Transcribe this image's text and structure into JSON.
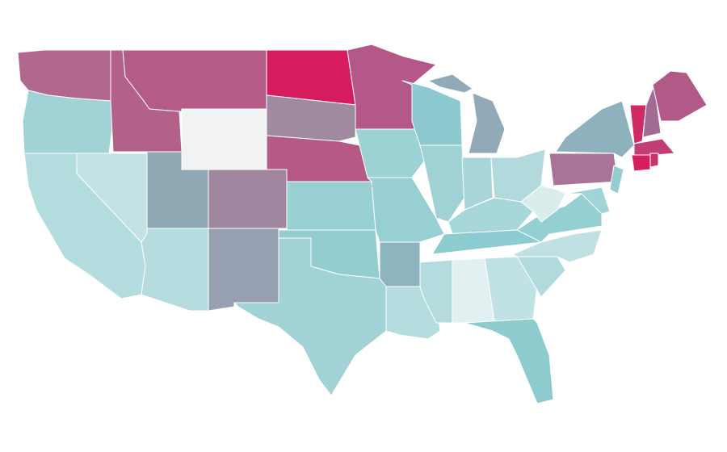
{
  "map": {
    "regions": [
      {
        "color": "#b0688f"
      },
      {
        "color": "#a0d2d6"
      },
      {
        "color": "#b3dcdf"
      },
      {
        "color": "#c2e2e4"
      },
      {
        "color": "#b4618a"
      },
      {
        "color": "#b45c87"
      },
      {
        "color": "#f1f2f4"
      },
      {
        "color": "#8fa9b4"
      },
      {
        "color": "#a0869f"
      },
      {
        "color": "#b4dbde"
      },
      {
        "color": "#96a0b2"
      },
      {
        "color": "#d61c5e"
      },
      {
        "color": "#a08aa0"
      },
      {
        "color": "#b65a85"
      },
      {
        "color": "#98cfd2"
      },
      {
        "color": "#94cdd0"
      },
      {
        "color": "#a1d2d6"
      },
      {
        "color": "#b4588a"
      },
      {
        "color": "#9dd2d4"
      },
      {
        "color": "#98cfd2"
      },
      {
        "color": "#8db4bf"
      },
      {
        "color": "#b5dde0"
      },
      {
        "color": "#8ccacf"
      },
      {
        "color": "#9fd1d5"
      },
      {
        "color": "#91aab8"
      },
      {
        "color": "#a9d6d9"
      },
      {
        "color": "#b2dadd"
      },
      {
        "color": "#a8d7da"
      },
      {
        "color": "#8ccbcf"
      },
      {
        "color": "#b4dcdf"
      },
      {
        "color": "#e3f0f1"
      },
      {
        "color": "#c1e2e4"
      },
      {
        "color": "#8dcbcf"
      },
      {
        "color": "#b2dadd"
      },
      {
        "color": "#bfe1e3"
      },
      {
        "color": "#94cfd2"
      },
      {
        "color": "#d9eded"
      },
      {
        "color": "#a87599"
      },
      {
        "color": "#8fb1bd"
      },
      {
        "color": "#94cdd0"
      },
      {
        "color": "#a0d4d6"
      },
      {
        "color": "#d02a65"
      },
      {
        "color": "#a26b94"
      },
      {
        "color": "#b15a88"
      },
      {
        "color": "#c23d73"
      },
      {
        "color": "#d51e5e"
      },
      {
        "color": "#c43570"
      }
    ]
  }
}
